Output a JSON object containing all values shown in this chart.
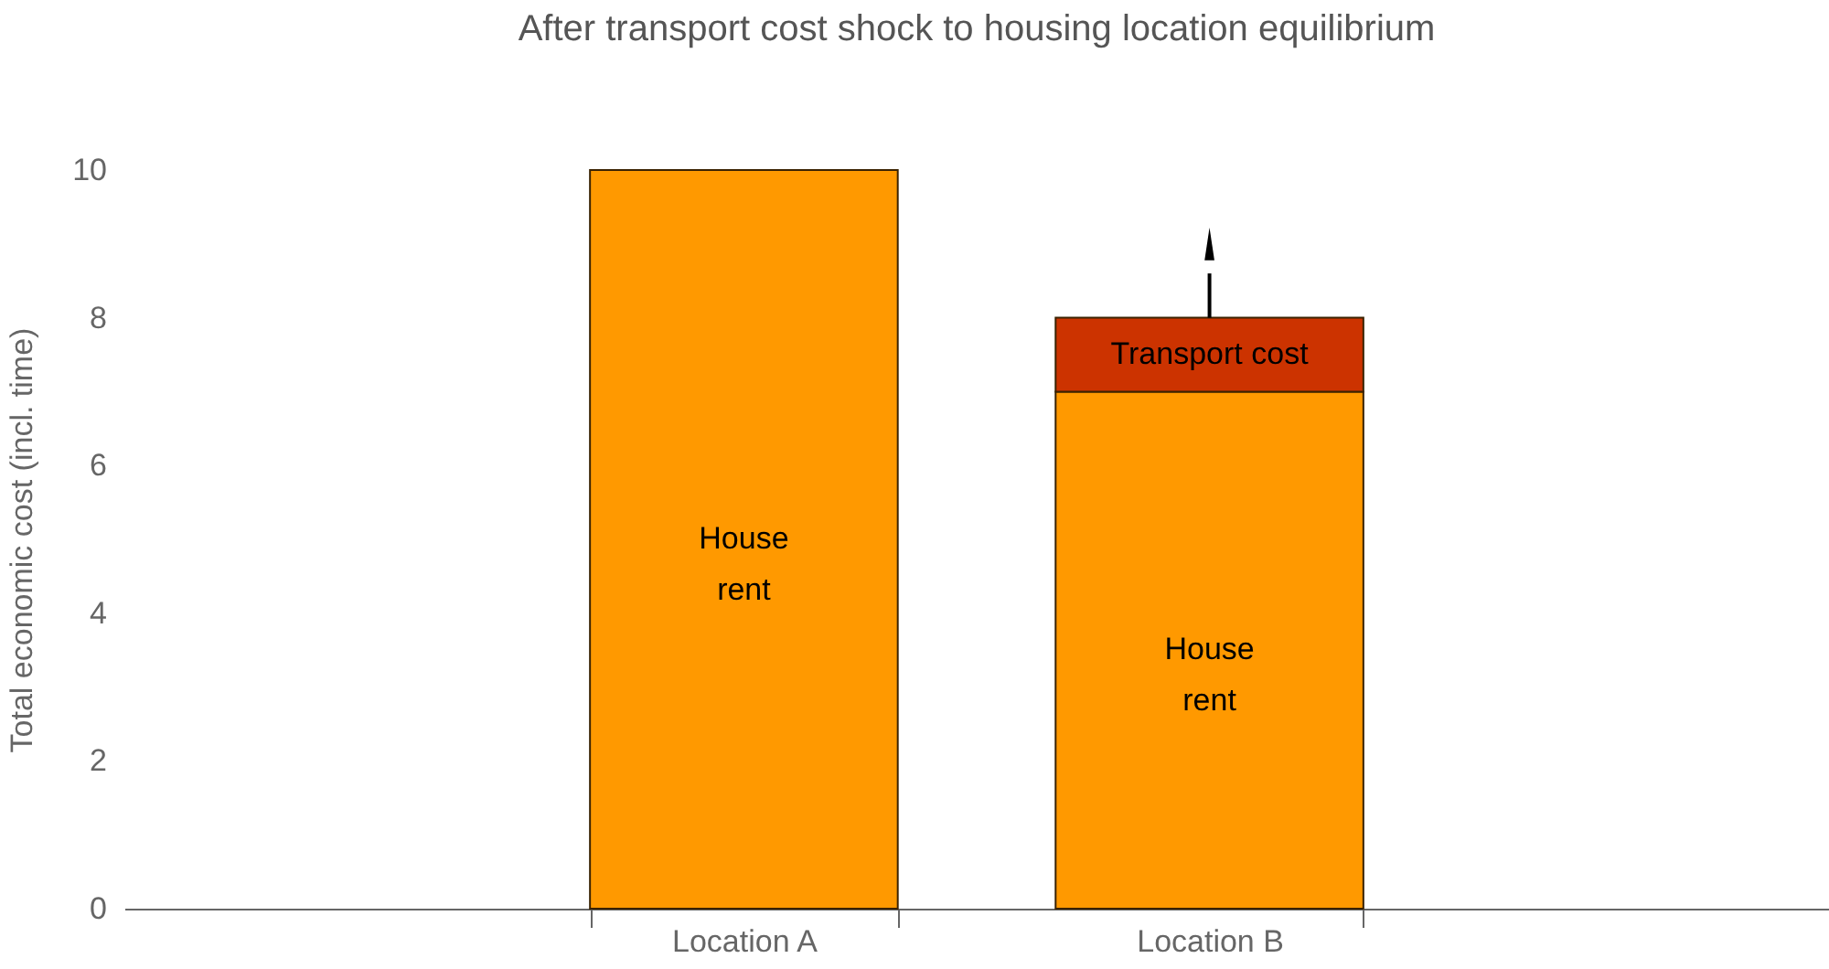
{
  "chart_data": {
    "type": "bar",
    "stacked": true,
    "title": "After transport cost shock to housing location equilibrium",
    "ylabel": "Total economic cost (incl. time)",
    "categories": [
      "Location A",
      "Location B"
    ],
    "series": [
      {
        "name": "House rent",
        "color": "#ff9900",
        "values": [
          10,
          7
        ]
      },
      {
        "name": "Transport cost",
        "color": "#cc3300",
        "values": [
          null,
          1
        ]
      }
    ],
    "ylim": [
      0,
      10
    ],
    "yticks": [
      0,
      2,
      4,
      6,
      8,
      10
    ],
    "grid": false,
    "legend": false
  }
}
